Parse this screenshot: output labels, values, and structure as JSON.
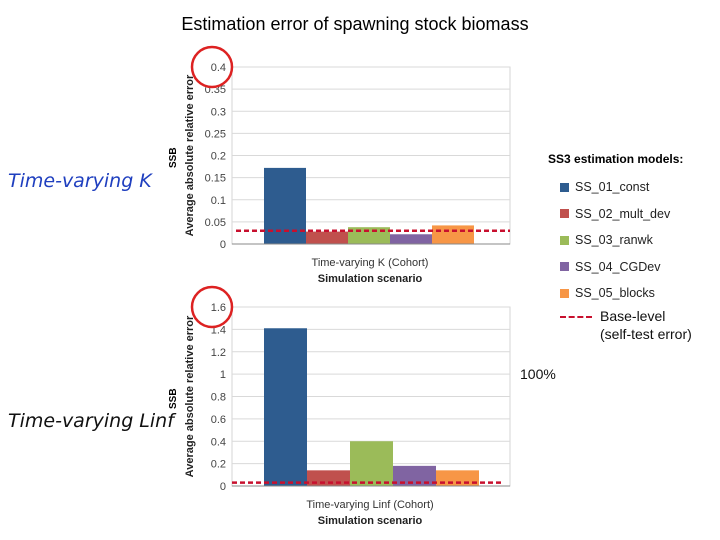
{
  "title": "Estimation error of spawning stock biomass",
  "scenarios": {
    "k": "Time-varying K",
    "linf": "Time-varying Linf"
  },
  "ssb_tag": "SSB",
  "legend": {
    "title": "SS3 estimation models:",
    "items": [
      {
        "label": "SS_01_const",
        "color": "#2E5C8F"
      },
      {
        "label": "SS_02_mult_dev",
        "color": "#C0504D"
      },
      {
        "label": "SS_03_ranwk",
        "color": "#9BBB59"
      },
      {
        "label": "SS_04_CGDev",
        "color": "#8064A2"
      },
      {
        "label": "SS_05_blocks",
        "color": "#F79646"
      }
    ]
  },
  "base_level": {
    "line1": "Base-level",
    "line2": "(self-test error)",
    "color": "#c8102e"
  },
  "percent_note": "100%",
  "highlight_color": "#dd2222",
  "chart_data": [
    {
      "type": "bar",
      "title": "",
      "xlabel": "Simulation scenario",
      "ylabel": "Average absolute relative error",
      "category": "Time-varying K (Cohort)",
      "series": [
        {
          "name": "SS_01_const",
          "value": 0.172
        },
        {
          "name": "SS_02_mult_dev",
          "value": 0.028
        },
        {
          "name": "SS_03_ranwk",
          "value": 0.038
        },
        {
          "name": "SS_04_CGDev",
          "value": 0.022
        },
        {
          "name": "SS_05_blocks",
          "value": 0.042
        }
      ],
      "ylim": [
        0,
        0.4
      ],
      "yticks": [
        "0",
        "0.05",
        "0.1",
        "0.15",
        "0.2",
        "0.25",
        "0.3",
        "0.35",
        "0.4"
      ],
      "highlighted_tick": "0.4",
      "base_level": 0.03,
      "grid": true
    },
    {
      "type": "bar",
      "title": "",
      "xlabel": "Simulation scenario",
      "ylabel": "Average absolute relative error",
      "category": "Time-varying Linf (Cohort)",
      "series": [
        {
          "name": "SS_01_const",
          "value": 1.41
        },
        {
          "name": "SS_02_mult_dev",
          "value": 0.14
        },
        {
          "name": "SS_03_ranwk",
          "value": 0.4
        },
        {
          "name": "SS_04_CGDev",
          "value": 0.18
        },
        {
          "name": "SS_05_blocks",
          "value": 0.14
        }
      ],
      "ylim": [
        0,
        1.6
      ],
      "yticks": [
        "0",
        "0.2",
        "0.4",
        "0.6",
        "0.8",
        "1",
        "1.2",
        "1.4",
        "1.6"
      ],
      "highlighted_tick": "1.6",
      "base_level": 0.03,
      "grid": true
    }
  ]
}
